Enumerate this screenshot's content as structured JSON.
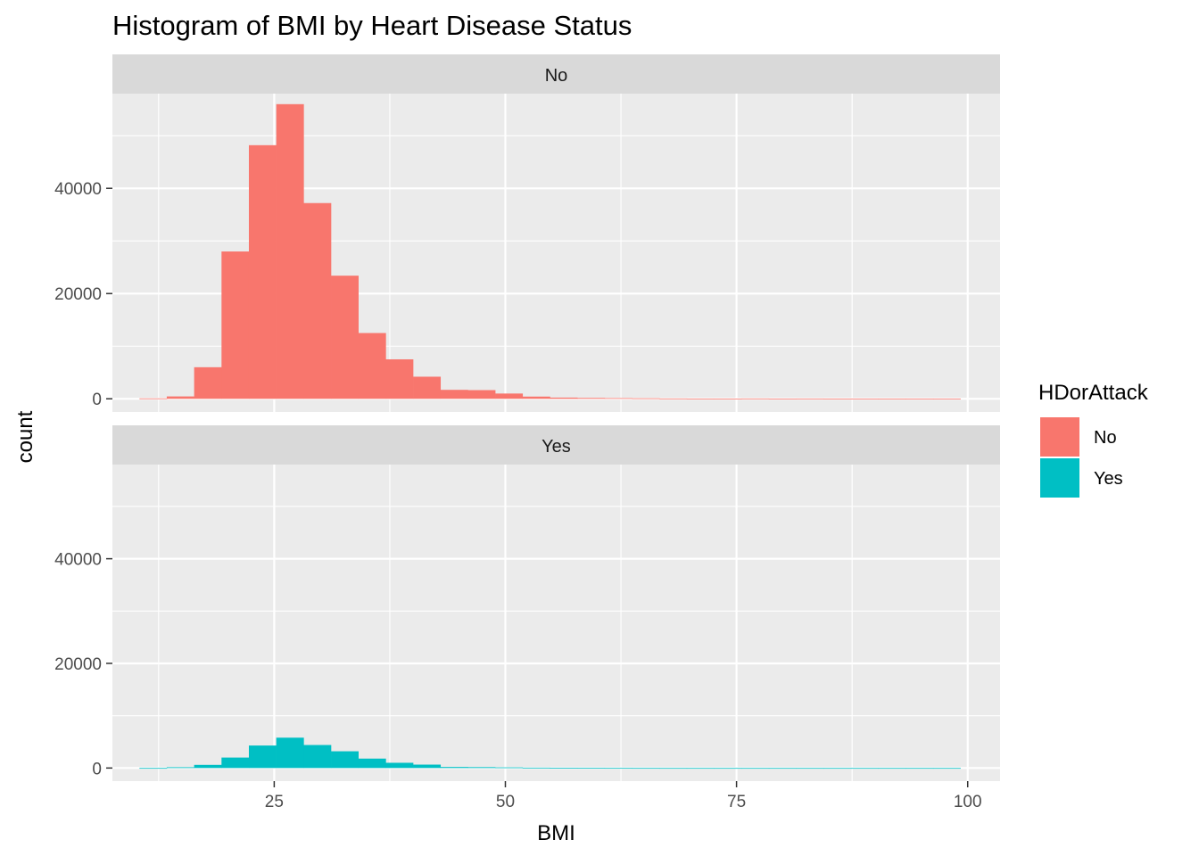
{
  "chart_data": {
    "type": "bar",
    "title": "Histogram of BMI by Heart Disease Status",
    "xlabel": "BMI",
    "ylabel": "count",
    "xlim": [
      7.5,
      103.5
    ],
    "ylim": [
      -2500,
      58000
    ],
    "x_ticks": [
      25,
      50,
      75,
      100
    ],
    "y_ticks": [
      0,
      20000,
      40000
    ],
    "grid": true,
    "legend": {
      "title": "HDorAttack",
      "position": "right",
      "entries": [
        {
          "label": "No",
          "color": "#F8766D"
        },
        {
          "label": "Yes",
          "color": "#00BFC4"
        }
      ]
    },
    "bin_width": 2.96,
    "bin_starts": [
      10.42,
      13.38,
      16.34,
      19.3,
      22.26,
      25.22,
      28.18,
      31.14,
      34.1,
      37.06,
      40.02,
      42.98,
      45.94,
      48.9,
      51.86,
      54.82,
      57.78,
      60.74,
      63.7,
      66.66,
      69.62,
      72.58,
      75.54,
      78.5,
      81.46,
      84.42,
      87.38,
      90.34,
      93.3,
      96.26
    ],
    "series": [
      {
        "name": "No",
        "color": "#F8766D",
        "values": [
          80,
          450,
          6000,
          28000,
          48200,
          56000,
          37200,
          23400,
          12500,
          7500,
          4200,
          1700,
          1650,
          1000,
          420,
          230,
          170,
          130,
          100,
          60,
          40,
          35,
          60,
          30,
          50,
          40,
          30,
          25,
          20,
          15
        ]
      },
      {
        "name": "Yes",
        "color": "#00BFC4",
        "values": [
          10,
          150,
          600,
          2000,
          4300,
          5800,
          4400,
          3200,
          1800,
          1000,
          650,
          200,
          170,
          120,
          70,
          30,
          20,
          15,
          10,
          5,
          5,
          5,
          5,
          5,
          5,
          5,
          5,
          5,
          5,
          5
        ]
      }
    ]
  }
}
